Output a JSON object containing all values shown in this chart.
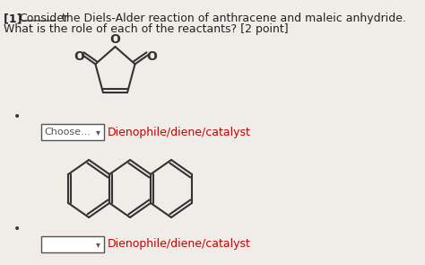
{
  "bg_color": "#f0ece8",
  "title_line1": "[1] Consider the Diels-Alder reaction of anthracene and maleic anhydride.",
  "title_line2": "What is the role of each of the reactants? [2 point]",
  "bracket_text": "Consider",
  "choose_label": "Choose...",
  "dienophile_label": "Dienophile/diene/catalyst",
  "bullet_color": "#333333",
  "text_color": "#222222",
  "red_color": "#cc0000",
  "underline_color": "#5555cc"
}
